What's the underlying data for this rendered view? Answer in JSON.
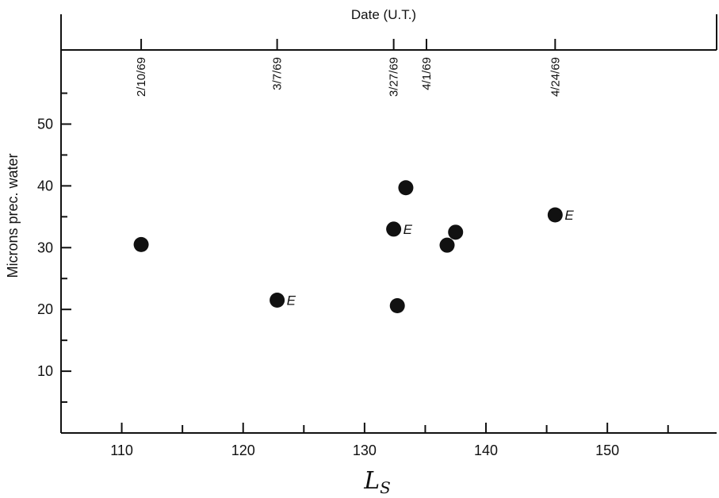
{
  "chart_data": {
    "type": "scatter",
    "top_axis_title": "Date (U.T.)",
    "xlabel": "L",
    "xlabel_sub": "S",
    "ylabel": "Microns prec. water",
    "xlim": [
      105,
      159
    ],
    "ylim": [
      0,
      62
    ],
    "x_ticks": [
      110,
      120,
      130,
      140,
      150
    ],
    "y_ticks": [
      10,
      20,
      30,
      40,
      50
    ],
    "date_markers": [
      {
        "label": "2/10/69",
        "x": 111.6
      },
      {
        "label": "3/7/69",
        "x": 122.8
      },
      {
        "label": "3/27/69",
        "x": 132.4
      },
      {
        "label": "4/1/69",
        "x": 135.1
      },
      {
        "label": "4/24/69",
        "x": 145.7
      }
    ],
    "points": [
      {
        "x": 111.6,
        "y": 30.5,
        "label": ""
      },
      {
        "x": 122.8,
        "y": 21.5,
        "label": "E"
      },
      {
        "x": 132.4,
        "y": 33.0,
        "label": "E"
      },
      {
        "x": 132.7,
        "y": 20.6,
        "label": ""
      },
      {
        "x": 133.4,
        "y": 39.7,
        "label": ""
      },
      {
        "x": 136.8,
        "y": 30.4,
        "label": ""
      },
      {
        "x": 137.5,
        "y": 32.5,
        "label": ""
      },
      {
        "x": 145.7,
        "y": 35.3,
        "label": "E"
      }
    ],
    "grid": false
  }
}
